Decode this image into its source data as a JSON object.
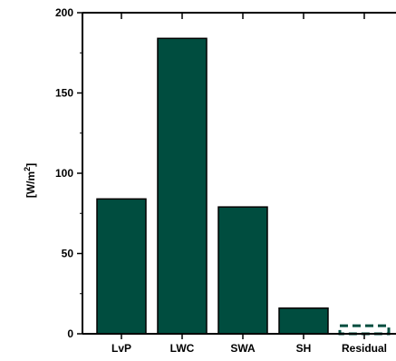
{
  "chart_data": {
    "type": "bar",
    "title": "",
    "xlabel": "",
    "ylabel": "[W/m",
    "ylabel_superscript": "2",
    "ylabel_suffix": "]",
    "categories": [
      "LvP",
      "LWC",
      "SWA",
      "SH",
      "Residual"
    ],
    "values": [
      84,
      184,
      79,
      16,
      5
    ],
    "ylim": [
      0,
      200
    ],
    "yticks": [
      "0",
      "50",
      "100",
      "150",
      "200"
    ],
    "grid": false,
    "legend": "none",
    "bar_color": "#004d3f",
    "edge_color": "#000000",
    "residual_style": "dashed outline"
  }
}
